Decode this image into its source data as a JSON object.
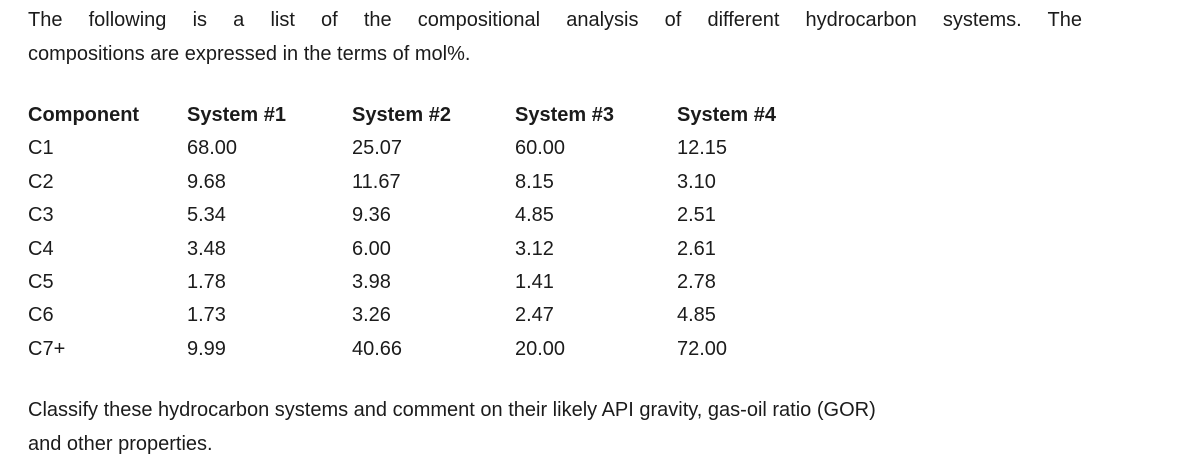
{
  "page": {
    "background_color": "#ffffff",
    "text_color": "#1b1b1b"
  },
  "intro": {
    "lines": [
      "The following is a list of the compositional analysis of different hydrocarbon systems. The",
      "compositions are expressed in the terms of mol%."
    ]
  },
  "table": {
    "unit": "mol%",
    "headers": [
      "Component",
      "System #1",
      "System #2",
      "System #3",
      "System #4"
    ],
    "rows": [
      [
        "C1",
        "68.00",
        "25.07",
        "60.00",
        "12.15"
      ],
      [
        "C2",
        "9.68",
        "11.67",
        "8.15",
        "3.10"
      ],
      [
        "C3",
        "5.34",
        "9.36",
        "4.85",
        "2.51"
      ],
      [
        "C4",
        "3.48",
        "6.00",
        "3.12",
        "2.61"
      ],
      [
        "C5",
        "1.78",
        "3.98",
        "1.41",
        "2.78"
      ],
      [
        "C6",
        "1.73",
        "3.26",
        "2.47",
        "4.85"
      ],
      [
        "C7+",
        "9.99",
        "40.66",
        "20.00",
        "72.00"
      ]
    ]
  },
  "question": {
    "lines": [
      "Classify these hydrocarbon systems and comment on their likely API gravity, gas-oil ratio (GOR)",
      "and other properties."
    ]
  }
}
